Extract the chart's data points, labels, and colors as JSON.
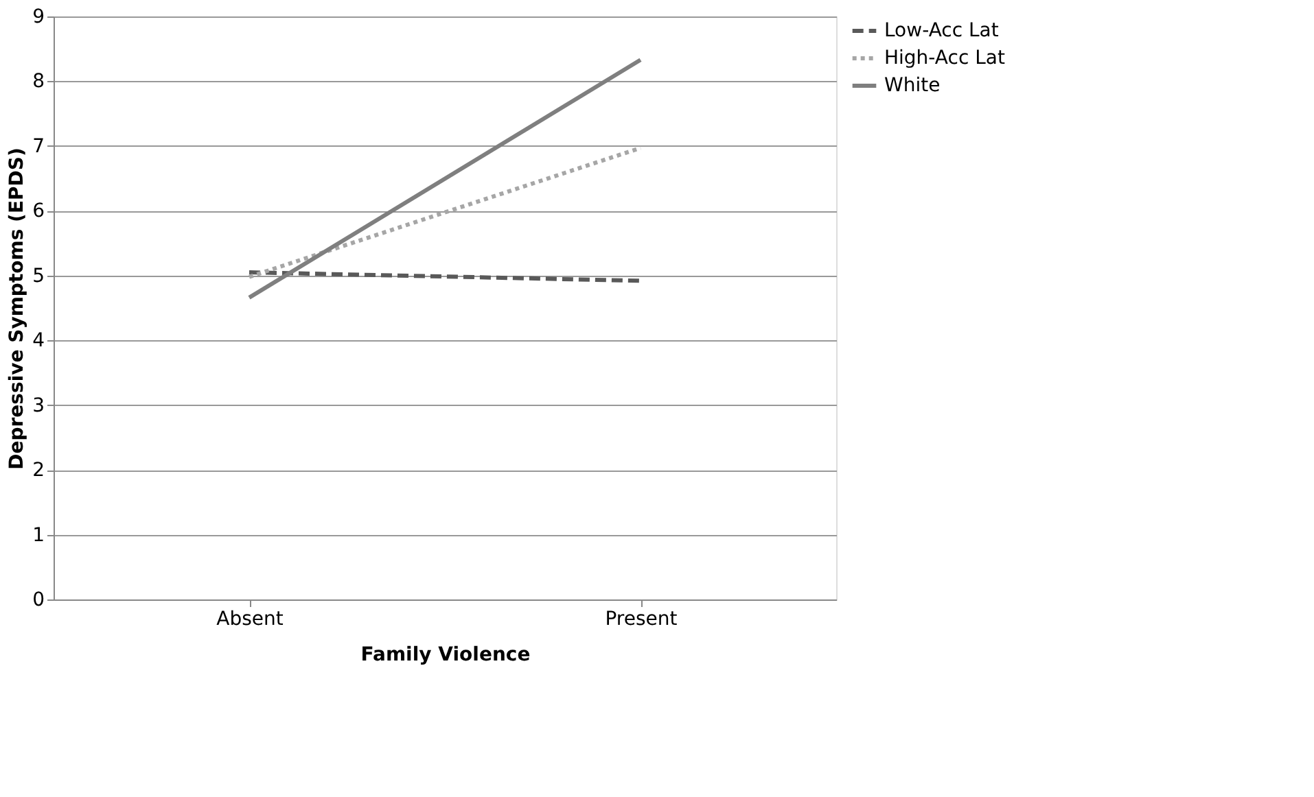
{
  "chart_data": {
    "type": "line",
    "xlabel": "Family Violence",
    "ylabel": "Depressive Symptoms (EPDS)",
    "categories": [
      "Absent",
      "Present"
    ],
    "series": [
      {
        "name": "Low-Acc Lat",
        "color": "#595959",
        "line_style": "dashed",
        "values": [
          5.05,
          4.92
        ]
      },
      {
        "name": "High-Acc Lat",
        "color": "#a6a6a6",
        "line_style": "dotted",
        "values": [
          4.98,
          6.97
        ]
      },
      {
        "name": "White",
        "color": "#7f7f7f",
        "line_style": "solid",
        "values": [
          4.66,
          8.33
        ]
      }
    ],
    "ylim": [
      0,
      9
    ],
    "yticks": [
      0,
      1,
      2,
      3,
      4,
      5,
      6,
      7,
      8,
      9
    ],
    "grid": "y",
    "legend": "right",
    "marker": "none"
  }
}
